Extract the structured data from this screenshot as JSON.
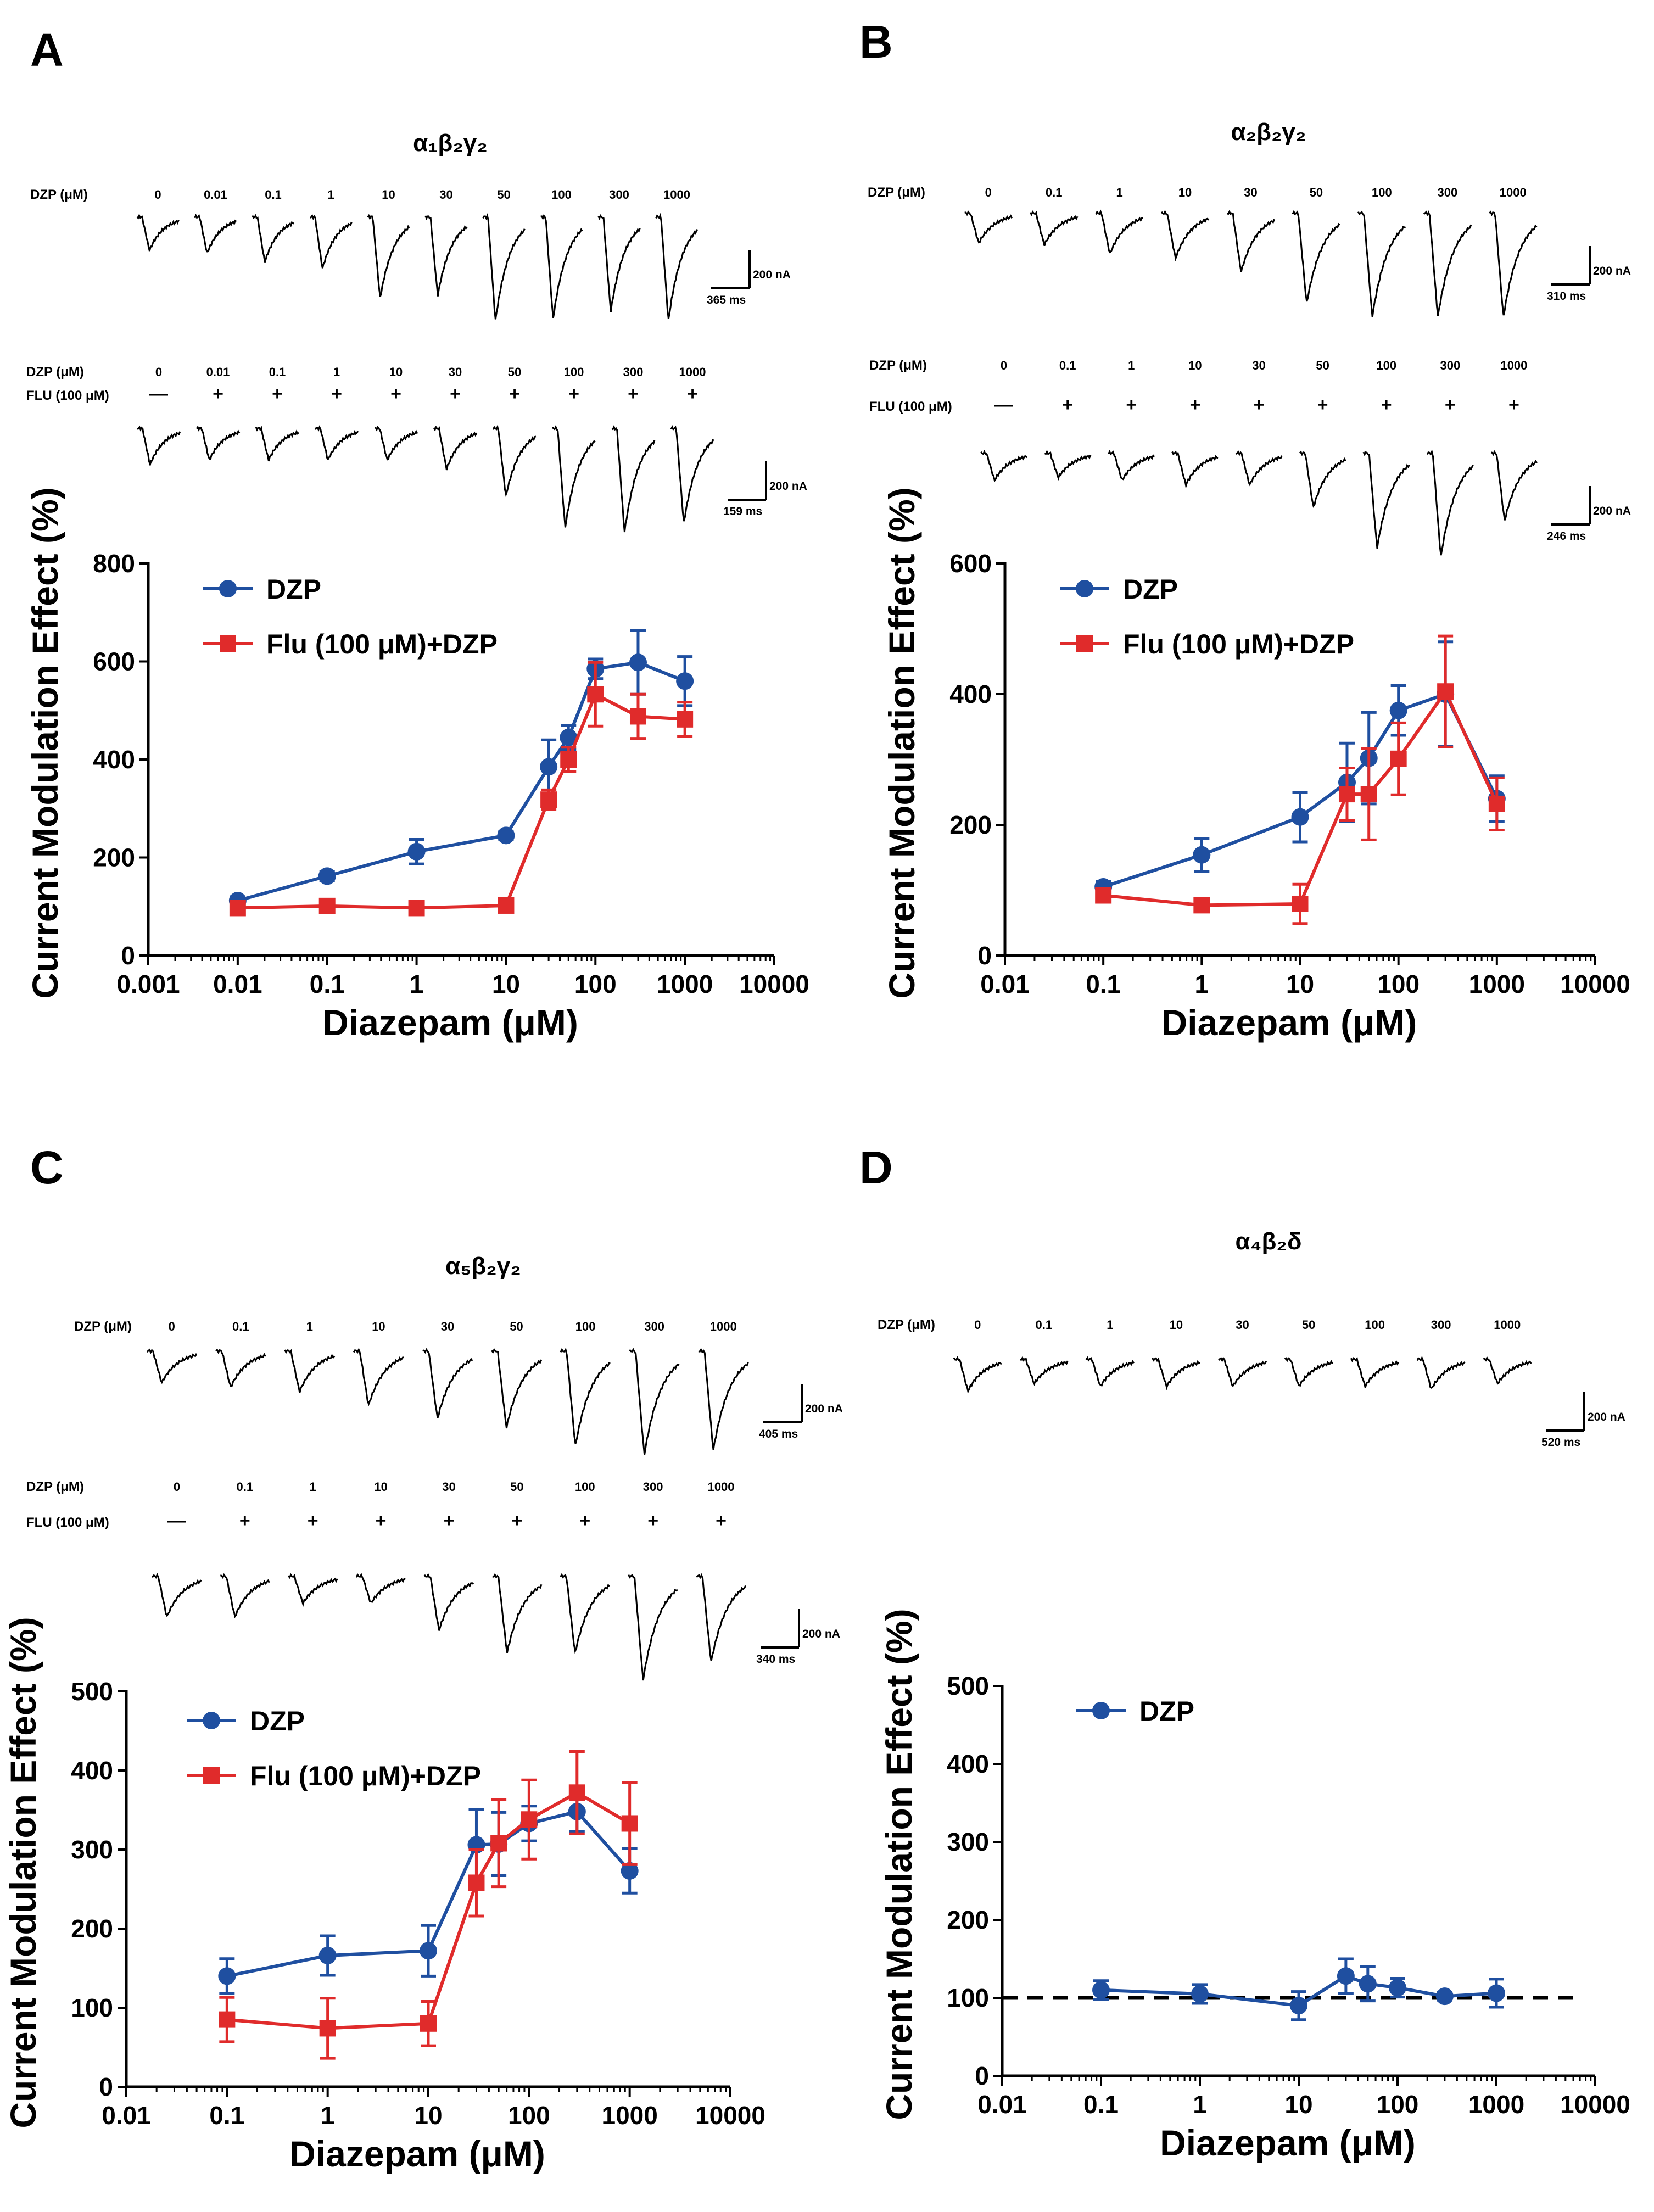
{
  "colors": {
    "dzp": "#1f4fa0",
    "flu": "#e02b2b",
    "ink": "#000000"
  },
  "panels": [
    {
      "letter": "A",
      "receptor": "α₁β₂γ₂",
      "traces": [
        {
          "dzp_label": "DZP (μM)",
          "flu_label": "",
          "concentrations": [
            "0",
            "0.01",
            "0.1",
            "1",
            "10",
            "30",
            "50",
            "100",
            "300",
            "1000"
          ],
          "flu_marks": [],
          "amplitudes": [
            0.22,
            0.25,
            0.35,
            0.42,
            0.75,
            0.72,
            1.0,
            0.98,
            0.9,
            1.0
          ],
          "scale_current": "200 nA",
          "scale_time": "365 ms"
        },
        {
          "dzp_label": "DZP (μM)",
          "flu_label": "FLU (100 μM)",
          "concentrations": [
            "0",
            "0.01",
            "0.1",
            "1",
            "10",
            "30",
            "50",
            "100",
            "300",
            "1000"
          ],
          "flu_marks": [
            "—",
            "+",
            "+",
            "+",
            "+",
            "+",
            "+",
            "+",
            "+",
            "+"
          ],
          "amplitudes": [
            0.25,
            0.2,
            0.2,
            0.2,
            0.2,
            0.3,
            0.6,
            0.95,
            1.0,
            0.9
          ],
          "scale_current": "200 nA",
          "scale_time": "159 ms"
        }
      ],
      "chart": {
        "type": "line",
        "xscale": "log",
        "xlim": [
          0.001,
          10000
        ],
        "xticks": [
          "0.001",
          "0.01",
          "0.1",
          "1",
          "10",
          "100",
          "1000",
          "10000"
        ],
        "ylim": [
          0,
          800
        ],
        "yticks": [
          "0",
          "200",
          "400",
          "600",
          "800"
        ],
        "xlabel": "Diazepam (μM)",
        "ylabel": "Current Modulation Effect (%)",
        "legend": "top-left",
        "series": [
          {
            "name": "DZP",
            "marker": "circle",
            "x": [
              0.01,
              0.1,
              1,
              10,
              30,
              50,
              100,
              300,
              1000
            ],
            "y": [
              112,
              162,
              212,
              245,
              385,
              445,
              585,
              598,
              560
            ],
            "err": [
              8,
              10,
              25,
              8,
              55,
              25,
              20,
              65,
              50
            ]
          },
          {
            "name": "Flu (100 μM)+DZP",
            "marker": "square",
            "x": [
              0.01,
              0.1,
              1,
              10,
              30,
              50,
              100,
              300,
              1000
            ],
            "y": [
              97,
              101,
              97,
              102,
              318,
              400,
              533,
              488,
              482
            ],
            "err": [
              8,
              8,
              8,
              8,
              20,
              25,
              65,
              45,
              35
            ]
          }
        ]
      }
    },
    {
      "letter": "B",
      "receptor": "α₂β₂γ₂",
      "traces": [
        {
          "dzp_label": "DZP (μM)",
          "flu_label": "",
          "concentrations": [
            "0",
            "0.1",
            "1",
            "10",
            "30",
            "50",
            "100",
            "300",
            "1000"
          ],
          "flu_marks": [],
          "amplitudes": [
            0.18,
            0.2,
            0.3,
            0.35,
            0.5,
            0.85,
            1.0,
            1.0,
            1.0
          ],
          "scale_current": "200 nA",
          "scale_time": "310 ms"
        },
        {
          "dzp_label": "DZP (μM)",
          "flu_label": "FLU (100 μM)",
          "concentrations": [
            "0",
            "0.1",
            "1",
            "10",
            "30",
            "50",
            "100",
            "300",
            "1000"
          ],
          "flu_marks": [
            "—",
            "+",
            "+",
            "+",
            "+",
            "+",
            "+",
            "+",
            "+"
          ],
          "amplitudes": [
            0.15,
            0.12,
            0.15,
            0.2,
            0.2,
            0.45,
            0.9,
            1.0,
            0.6
          ],
          "scale_current": "200 nA",
          "scale_time": "246 ms"
        }
      ],
      "chart": {
        "type": "line",
        "xscale": "log",
        "xlim": [
          0.01,
          10000
        ],
        "xticks": [
          "0.01",
          "0.1",
          "1",
          "10",
          "100",
          "1000",
          "10000"
        ],
        "ylim": [
          0,
          600
        ],
        "yticks": [
          "0",
          "200",
          "400",
          "600"
        ],
        "xlabel": "Diazepam (μM)",
        "ylabel": "Current Modulation Effect (%)",
        "legend": "top-left",
        "series": [
          {
            "name": "DZP",
            "marker": "circle",
            "x": [
              0.1,
              1,
              10,
              30,
              50,
              100,
              300,
              1000
            ],
            "y": [
              105,
              154,
              212,
              265,
              302,
              375,
              400,
              240
            ],
            "err": [
              8,
              25,
              38,
              60,
              70,
              38,
              80,
              35
            ]
          },
          {
            "name": "Flu (100 μM)+DZP",
            "marker": "square",
            "x": [
              0.1,
              1,
              10,
              30,
              50,
              100,
              300,
              1000
            ],
            "y": [
              92,
              77,
              79,
              247,
              247,
              301,
              404,
              232
            ],
            "err": [
              8,
              8,
              30,
              40,
              70,
              55,
              85,
              40
            ]
          }
        ]
      }
    },
    {
      "letter": "C",
      "receptor": "α₅β₂γ₂",
      "traces": [
        {
          "dzp_label": "DZP (μM)",
          "flu_label": "",
          "concentrations": [
            "0",
            "0.1",
            "1",
            "10",
            "30",
            "50",
            "100",
            "300",
            "1000"
          ],
          "flu_marks": [],
          "amplitudes": [
            0.2,
            0.25,
            0.3,
            0.45,
            0.6,
            0.7,
            0.9,
            1.0,
            0.95
          ],
          "scale_current": "200 nA",
          "scale_time": "405 ms"
        },
        {
          "dzp_label": "DZP (μM)",
          "flu_label": "FLU (100 μM)",
          "concentrations": [
            "0",
            "0.1",
            "1",
            "10",
            "30",
            "50",
            "100",
            "300",
            "1000"
          ],
          "flu_marks": [
            "—",
            "+",
            "+",
            "+",
            "+",
            "+",
            "+",
            "+",
            "+"
          ],
          "amplitudes": [
            0.3,
            0.3,
            0.15,
            0.15,
            0.45,
            0.7,
            0.7,
            1.0,
            0.8
          ],
          "scale_current": "200 nA",
          "scale_time": "340 ms"
        }
      ],
      "chart": {
        "type": "line",
        "xscale": "log",
        "xlim": [
          0.01,
          10000
        ],
        "xticks": [
          "0.01",
          "0.1",
          "1",
          "10",
          "100",
          "1000",
          "10000"
        ],
        "ylim": [
          0,
          500
        ],
        "yticks": [
          "0",
          "100",
          "200",
          "300",
          "400",
          "500"
        ],
        "xlabel": "Diazepam (μM)",
        "ylabel": "Current Modulation Effect (%)",
        "legend": "top-left",
        "series": [
          {
            "name": "DZP",
            "marker": "circle",
            "x": [
              0.1,
              1,
              10,
              30,
              50,
              100,
              300,
              1000
            ],
            "y": [
              140,
              166,
              172,
              306,
              307,
              333,
              348,
              273
            ],
            "err": [
              22,
              25,
              32,
              45,
              40,
              22,
              25,
              28
            ]
          },
          {
            "name": "Flu (100 μM)+DZP",
            "marker": "square",
            "x": [
              0.1,
              1,
              10,
              30,
              50,
              100,
              300,
              1000
            ],
            "y": [
              85,
              74,
              80,
              258,
              308,
              338,
              372,
              333
            ],
            "err": [
              28,
              38,
              28,
              42,
              55,
              50,
              52,
              52
            ]
          }
        ]
      }
    },
    {
      "letter": "D",
      "receptor": "α₄β₂δ",
      "traces": [
        {
          "dzp_label": "DZP (μM)",
          "flu_label": "",
          "concentrations": [
            "0",
            "0.1",
            "1",
            "10",
            "30",
            "50",
            "100",
            "300",
            "1000"
          ],
          "flu_marks": [],
          "amplitudes": [
            0.2,
            0.12,
            0.15,
            0.15,
            0.15,
            0.15,
            0.15,
            0.18,
            0.12
          ],
          "scale_current": "200 nA",
          "scale_time": "520 ms"
        }
      ],
      "chart": {
        "type": "line",
        "xscale": "log",
        "xlim": [
          0.01,
          10000
        ],
        "xticks": [
          "0.01",
          "0.1",
          "1",
          "10",
          "100",
          "1000",
          "10000"
        ],
        "ylim": [
          0,
          500
        ],
        "yticks": [
          "0",
          "100",
          "200",
          "300",
          "400",
          "500"
        ],
        "xlabel": "Diazepam (μM)",
        "ylabel": "Current Modulation Effect (%)",
        "legend": "top-left",
        "reference_line_y": 100,
        "series": [
          {
            "name": "DZP",
            "marker": "circle",
            "x": [
              0.1,
              1,
              10,
              30,
              50,
              100,
              300,
              1000
            ],
            "y": [
              110,
              105,
              90,
              128,
              118,
              113,
              102,
              106
            ],
            "err": [
              12,
              12,
              18,
              22,
              22,
              12,
              5,
              18
            ]
          }
        ]
      }
    }
  ]
}
